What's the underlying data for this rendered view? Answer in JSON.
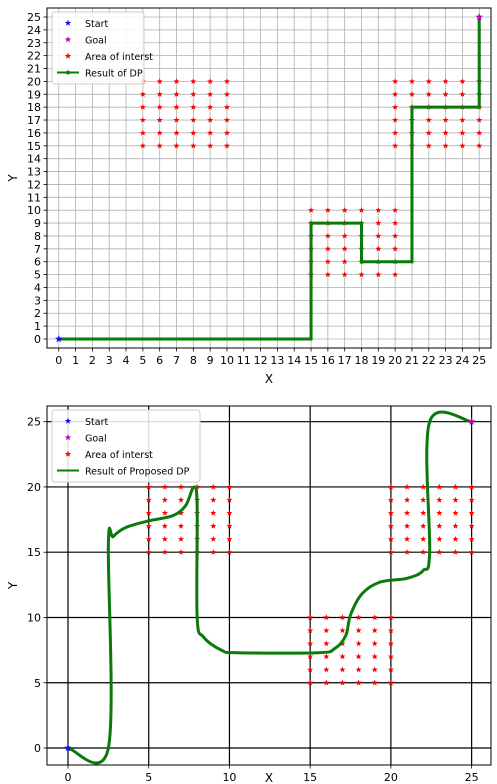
{
  "chart_data": [
    {
      "type": "line",
      "xlabel": "X",
      "ylabel": "Y",
      "xlim": [
        -0.7,
        25.7
      ],
      "ylim": [
        -0.7,
        25.7
      ],
      "grid": true,
      "xticks": [
        0,
        1,
        2,
        3,
        4,
        5,
        6,
        7,
        8,
        9,
        10,
        11,
        12,
        13,
        14,
        15,
        16,
        17,
        18,
        19,
        20,
        21,
        22,
        23,
        24,
        25
      ],
      "yticks": [
        0,
        1,
        2,
        3,
        4,
        5,
        6,
        7,
        8,
        9,
        10,
        11,
        12,
        13,
        14,
        15,
        16,
        17,
        18,
        19,
        20,
        21,
        22,
        23,
        24,
        25
      ],
      "legend": {
        "position": "top-left",
        "entries": [
          {
            "label": "Start",
            "marker": "star",
            "color": "#1010ff"
          },
          {
            "label": "Goal",
            "marker": "star",
            "color": "#bf00bf"
          },
          {
            "label": "Area of interst",
            "marker": "star",
            "color": "#ff0000"
          },
          {
            "label": "Result of DP",
            "marker": "line-dot",
            "color": "#0a7a0a"
          }
        ]
      },
      "series": [
        {
          "kind": "start",
          "x": [
            0
          ],
          "y": [
            0
          ],
          "color": "#1010ff"
        },
        {
          "kind": "goal",
          "x": [
            25
          ],
          "y": [
            25
          ],
          "color": "#bf00bf"
        },
        {
          "kind": "areas",
          "color": "#ff0000",
          "regions": [
            {
              "x": [
                5,
                10
              ],
              "y": [
                15,
                20
              ]
            },
            {
              "x": [
                15,
                20
              ],
              "y": [
                5,
                10
              ]
            },
            {
              "x": [
                20,
                25
              ],
              "y": [
                15,
                20
              ]
            }
          ]
        },
        {
          "kind": "path",
          "color": "#0a7a0a",
          "points": [
            [
              0,
              0
            ],
            [
              15,
              0
            ],
            [
              15,
              9
            ],
            [
              18,
              9
            ],
            [
              18,
              6
            ],
            [
              21,
              6
            ],
            [
              21,
              18
            ],
            [
              25,
              18
            ],
            [
              25,
              25
            ]
          ]
        }
      ]
    },
    {
      "type": "line",
      "xlabel": "X",
      "ylabel": "Y",
      "xlim": [
        -1.3,
        26.2
      ],
      "ylim": [
        -1.3,
        26.2
      ],
      "grid": true,
      "xticks": [
        0,
        5,
        10,
        15,
        20,
        25
      ],
      "yticks": [
        0,
        5,
        10,
        15,
        20,
        25
      ],
      "legend": {
        "position": "top-left",
        "entries": [
          {
            "label": "Start",
            "marker": "star",
            "color": "#1010ff"
          },
          {
            "label": "Goal",
            "marker": "star",
            "color": "#bf00bf"
          },
          {
            "label": "Area of interst",
            "marker": "star",
            "color": "#ff0000"
          },
          {
            "label": "Result of Proposed DP",
            "marker": "line",
            "color": "#0a7a0a"
          }
        ]
      },
      "series": [
        {
          "kind": "start",
          "x": [
            0
          ],
          "y": [
            0
          ],
          "color": "#1010ff"
        },
        {
          "kind": "goal",
          "x": [
            25
          ],
          "y": [
            25
          ],
          "color": "#bf00bf"
        },
        {
          "kind": "areas",
          "color": "#ff0000",
          "regions": [
            {
              "x": [
                5,
                10
              ],
              "y": [
                15,
                20
              ]
            },
            {
              "x": [
                15,
                20
              ],
              "y": [
                5,
                10
              ]
            },
            {
              "x": [
                20,
                25
              ],
              "y": [
                15,
                20
              ]
            }
          ]
        },
        {
          "kind": "curve",
          "color": "#0a7a0a",
          "points": [
            [
              0,
              0
            ],
            [
              2.5,
              0
            ],
            [
              2.5,
              15.5
            ],
            [
              2.8,
              16.2
            ],
            [
              3.6,
              16.9
            ],
            [
              5,
              17.4
            ],
            [
              6.5,
              17.8
            ],
            [
              7.3,
              18.6
            ],
            [
              7.8,
              20
            ],
            [
              8,
              18.5
            ],
            [
              8,
              10
            ],
            [
              8.4,
              8.5
            ],
            [
              9.5,
              7.5
            ],
            [
              10.5,
              7.3
            ],
            [
              15.5,
              7.3
            ],
            [
              16.5,
              7.6
            ],
            [
              17.2,
              8.6
            ],
            [
              17.5,
              10.2
            ],
            [
              18.2,
              11.8
            ],
            [
              19.3,
              12.7
            ],
            [
              21,
              13
            ],
            [
              22,
              13.6
            ],
            [
              22.4,
              15
            ],
            [
              22.4,
              25
            ],
            [
              25,
              25
            ]
          ]
        }
      ]
    }
  ]
}
